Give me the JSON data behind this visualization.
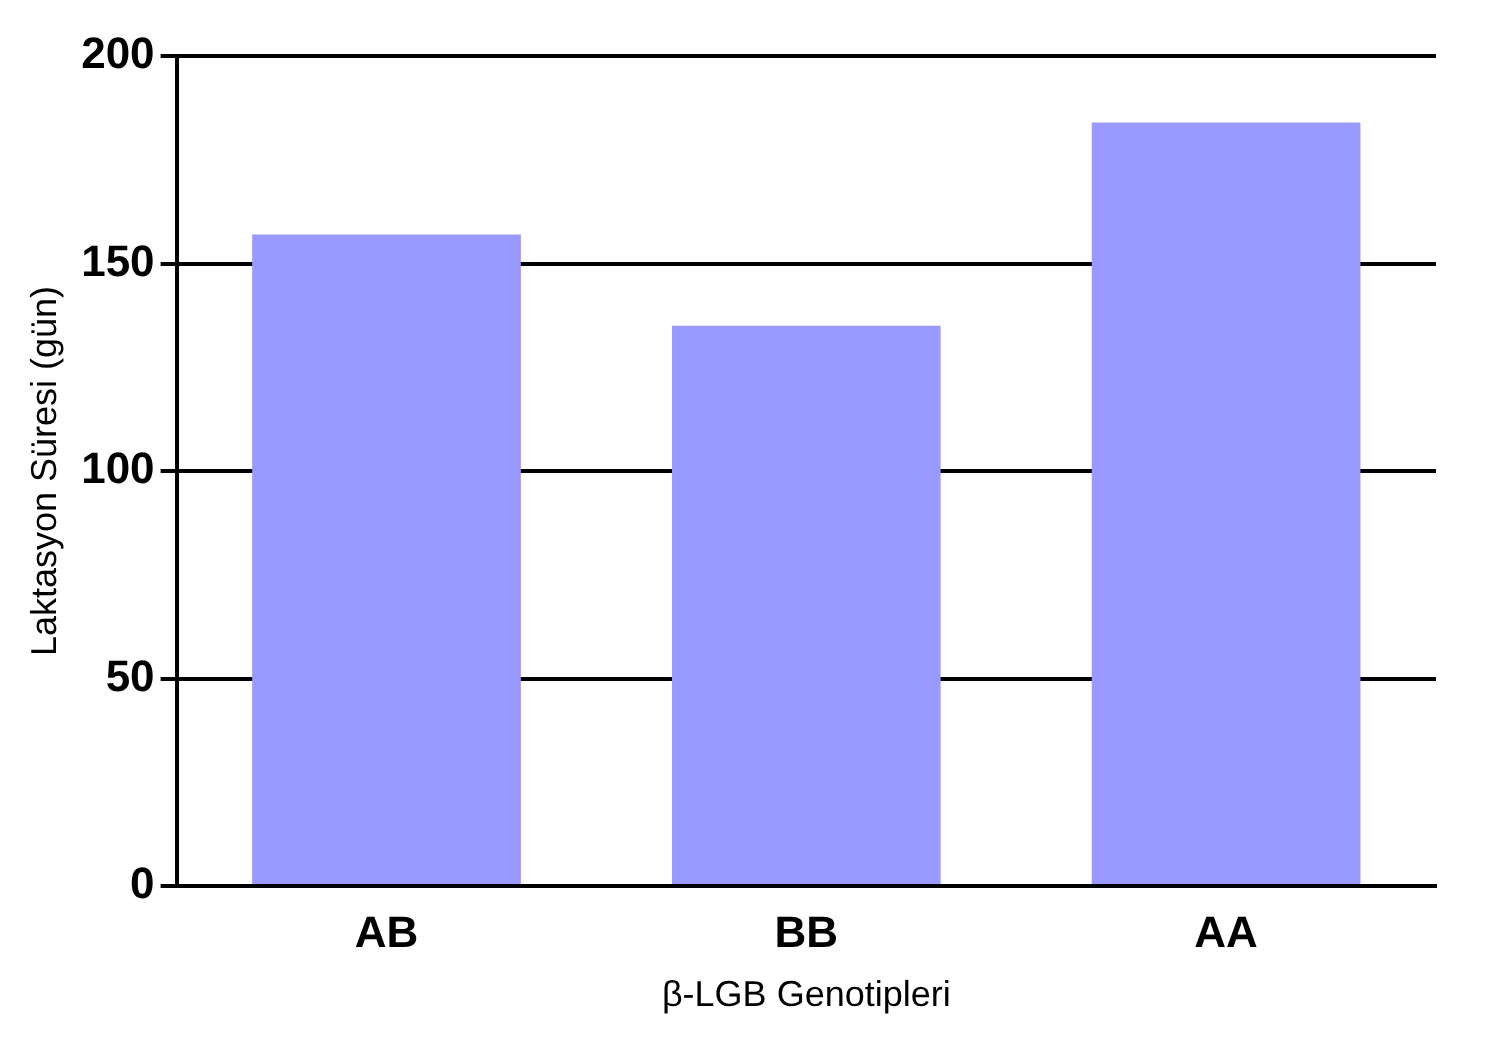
{
  "chart_data": {
    "type": "bar",
    "xlabel": "β-LGB Genotipleri",
    "ylabel": "Laktasyon Süresi (gün)",
    "categories": [
      "AB",
      "BB",
      "AA"
    ],
    "values": [
      157,
      135,
      184
    ],
    "color": "#9999ff",
    "ylim": [
      0,
      200
    ],
    "yticks": [
      0,
      50,
      100,
      150,
      200
    ],
    "grid": "y",
    "legend": false
  }
}
